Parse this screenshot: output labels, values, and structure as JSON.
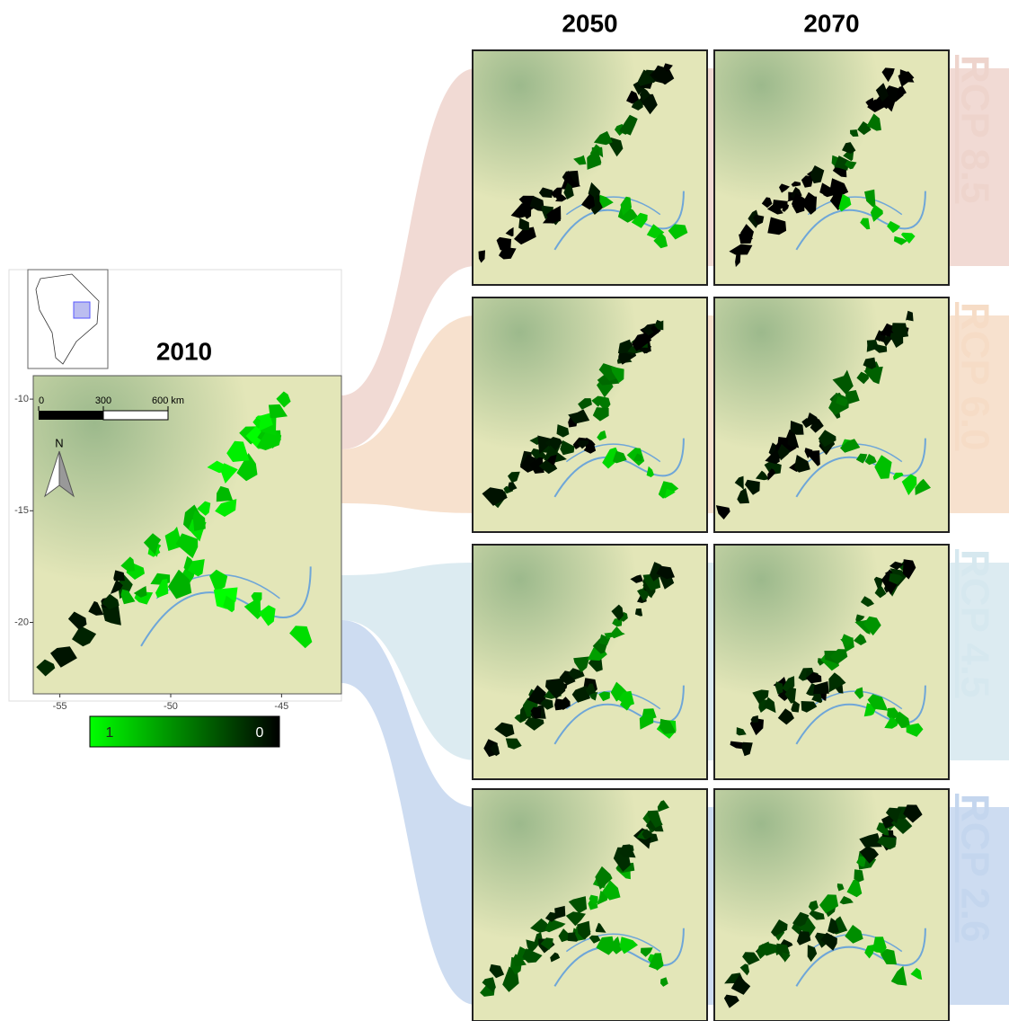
{
  "main_map": {
    "title": "2010",
    "xlim": [
      -56.2,
      -42.3
    ],
    "ylim": [
      -23.2,
      -8.95
    ],
    "xticks": [
      -55,
      -50,
      -45
    ],
    "yticks": [
      -10,
      -15,
      -20
    ],
    "scale_bar": {
      "lim": [
        0,
        600
      ],
      "ticks": [
        0,
        300,
        {
          "value": 600,
          "label": "600 km"
        }
      ]
    },
    "north": "N"
  },
  "colorbar": {
    "lim": [
      1,
      0
    ],
    "ticks": [
      1,
      0
    ],
    "colors": [
      "#00ff00",
      "#000000"
    ]
  },
  "columns": [
    "2050",
    "2070"
  ],
  "scenarios": [
    {
      "name": "RCP 8.5",
      "color": "#eed4cc"
    },
    {
      "name": "RCP 6.0",
      "color": "#f6dcc6"
    },
    {
      "name": "RCP 4.5",
      "color": "#d6e8ef"
    },
    {
      "name": "RCP 2.6",
      "color": "#c4d6ee"
    }
  ]
}
